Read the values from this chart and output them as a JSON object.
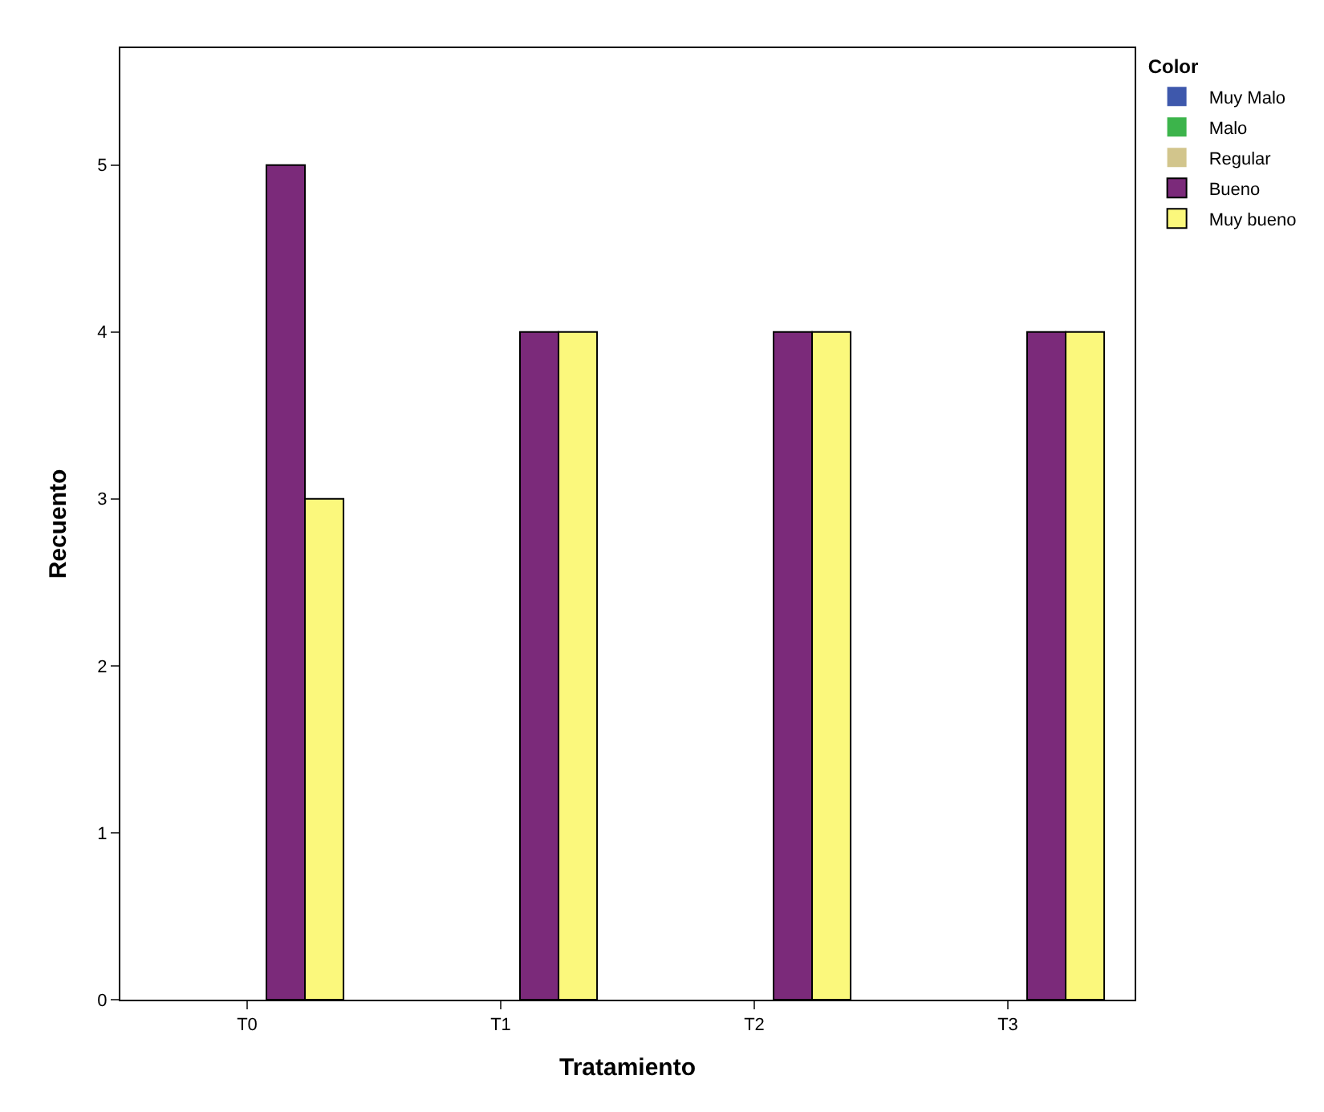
{
  "chart_data": {
    "type": "bar",
    "xlabel": "Tratamiento",
    "ylabel": "Recuento",
    "legend_title": "Color",
    "categories": [
      "T0",
      "T1",
      "T2",
      "T3"
    ],
    "series": [
      {
        "name": "Muy Malo",
        "color": "#3e58ac",
        "values": [
          0,
          0,
          0,
          0
        ]
      },
      {
        "name": "Malo",
        "color": "#3cb44b",
        "values": [
          0,
          0,
          0,
          0
        ]
      },
      {
        "name": "Regular",
        "color": "#d2c58c",
        "values": [
          0,
          0,
          0,
          0
        ]
      },
      {
        "name": "Bueno",
        "color": "#7b2a7a",
        "values": [
          5,
          4,
          4,
          4
        ]
      },
      {
        "name": "Muy bueno",
        "color": "#fbf87c",
        "values": [
          3,
          4,
          4,
          4
        ]
      }
    ],
    "ylim": [
      0,
      5.7
    ],
    "yticks": [
      0,
      1,
      2,
      3,
      4,
      5
    ],
    "legend": "top right"
  }
}
